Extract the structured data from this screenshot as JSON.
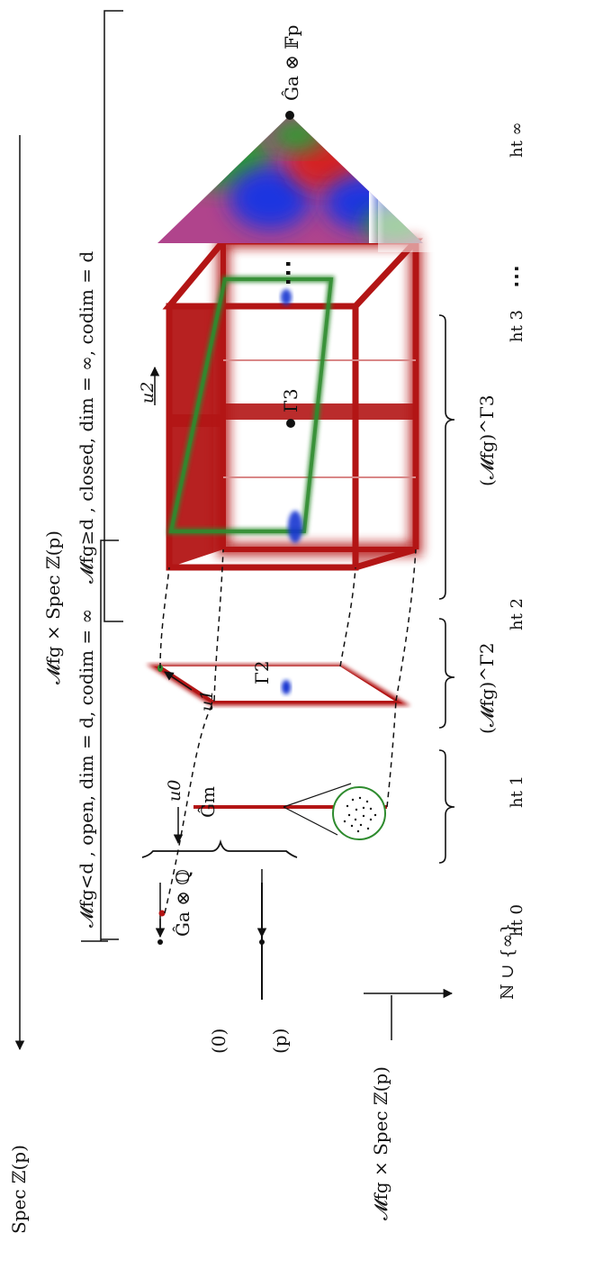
{
  "labels": {
    "spec_zp": "Spec ℤ(p)",
    "moduli_top": "𝓜fg × Spec ℤ(p)",
    "moduli_bottom": "𝓜fg × Spec ℤ(p)",
    "nat_infty": "ℕ ∪ {∞}",
    "point_zero": "(0)",
    "point_p": "(p)",
    "open_part": "𝓜fg<d , open, dim = d, codim = ∞",
    "closed_part": "𝓜fg≥d , closed, dim = ∞, codim = d",
    "ga_q": "Ĝa ⊗ ℚ",
    "ga_fp": "Ĝa ⊗ 𝔽p",
    "gm": "Ĝm",
    "gamma2": "Γ2",
    "gamma3": "Γ3",
    "u0": "u0",
    "u1": "u1",
    "u2": "u2",
    "completion2": "(𝓜fg)^Γ2",
    "completion3": "(𝓜fg)^Γ3",
    "ellipsis": "⋯"
  },
  "heights": [
    "ht 0",
    "ht 1",
    "ht 2",
    "ht 3",
    "ht ∞"
  ],
  "colors": {
    "red": "#b31515",
    "green": "#2e8b2e",
    "blue": "#1535d0",
    "black": "#111111"
  }
}
